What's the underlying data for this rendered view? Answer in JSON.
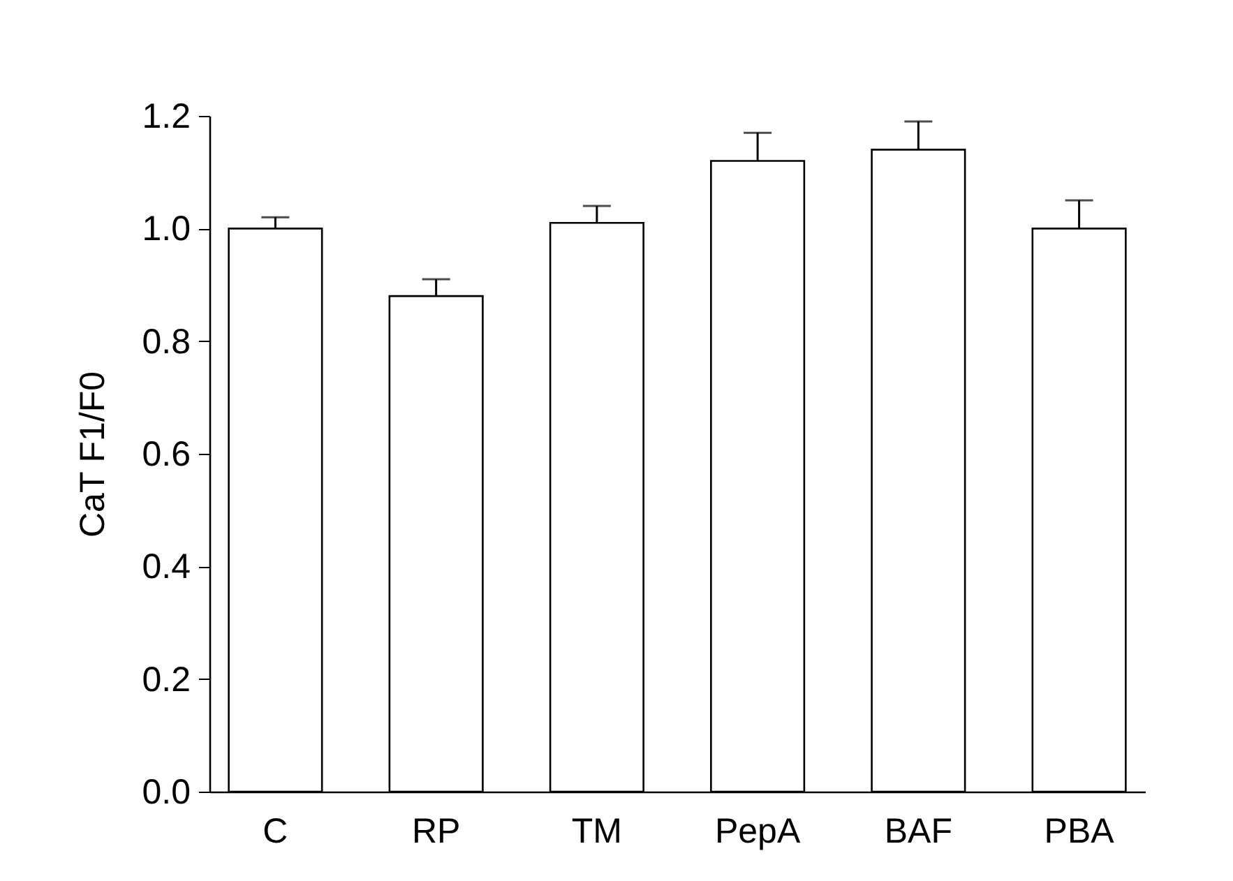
{
  "chart_data": {
    "type": "bar",
    "ylabel": "CaT F1/F0",
    "categories": [
      "C",
      "RP",
      "TM",
      "PepA",
      "BAF",
      "PBA"
    ],
    "values": [
      1.0,
      0.88,
      1.01,
      1.12,
      1.14,
      1.0
    ],
    "errors": [
      [
        1.0,
        1.02
      ],
      [
        0.88,
        0.91
      ],
      [
        1.01,
        1.04
      ],
      [
        1.12,
        1.17
      ],
      [
        1.14,
        1.19
      ],
      [
        1.0,
        1.05
      ]
    ],
    "color": "#ffffff",
    "ylim": [
      0,
      1.2
    ],
    "yticks": [
      {
        "value": 0,
        "label": "0.0"
      },
      0.2,
      0.4,
      0.6,
      0.8,
      {
        "value": 1,
        "label": "1.0"
      },
      1.2
    ],
    "grid": false
  }
}
